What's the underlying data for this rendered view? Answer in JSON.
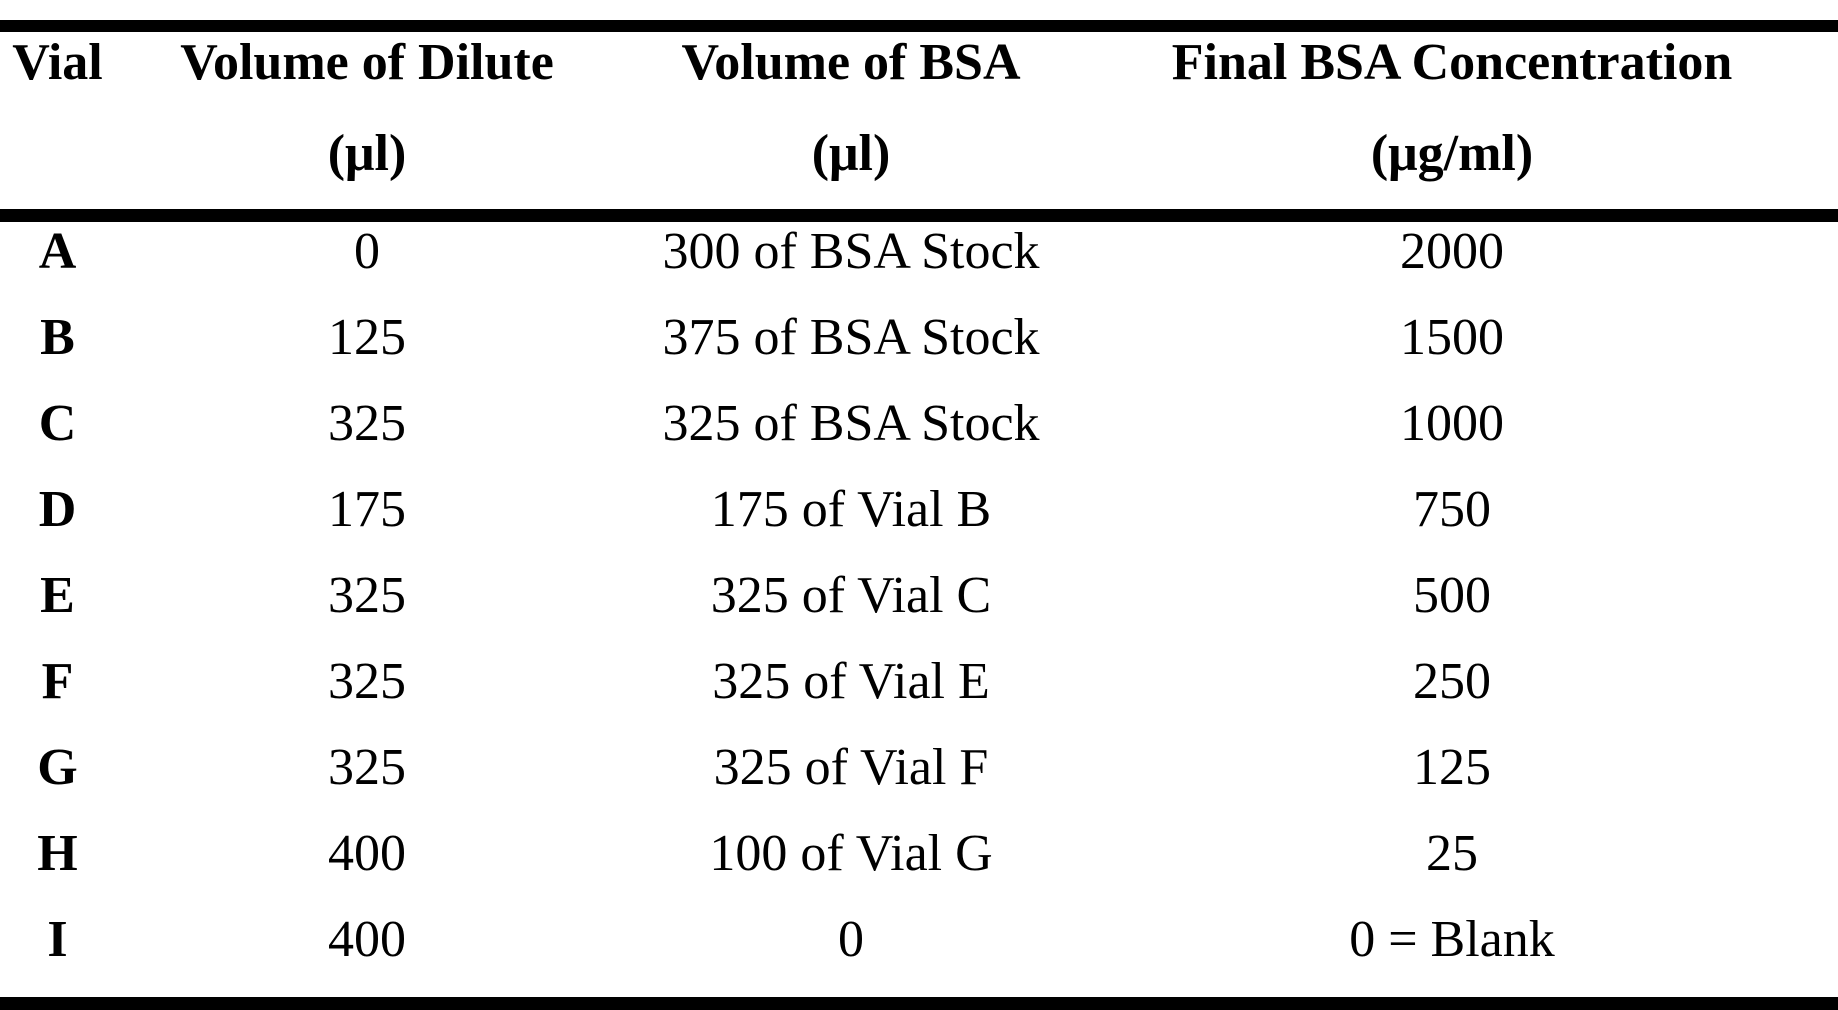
{
  "colors": {
    "text": "#000000",
    "background": "#ffffff",
    "rule": "#000000"
  },
  "table": {
    "headers": {
      "vial": {
        "title": "Vial",
        "unit": ""
      },
      "dilute": {
        "title": "Volume of Dilute",
        "unit": "(μl)"
      },
      "bsa": {
        "title": "Volume of BSA",
        "unit": "(μl)"
      },
      "final": {
        "title": "Final BSA Concentration",
        "unit": "(μg/ml)"
      }
    },
    "rows": [
      {
        "vial": "A",
        "dilute": "0",
        "bsa": "300 of BSA Stock",
        "final": "2000"
      },
      {
        "vial": "B",
        "dilute": "125",
        "bsa": "375 of BSA Stock",
        "final": "1500"
      },
      {
        "vial": "C",
        "dilute": "325",
        "bsa": "325 of BSA Stock",
        "final": "1000"
      },
      {
        "vial": "D",
        "dilute": "175",
        "bsa": "175 of Vial B",
        "final": "750"
      },
      {
        "vial": "E",
        "dilute": "325",
        "bsa": "325 of Vial C",
        "final": "500"
      },
      {
        "vial": "F",
        "dilute": "325",
        "bsa": "325 of Vial E",
        "final": "250"
      },
      {
        "vial": "G",
        "dilute": "325",
        "bsa": "325 of Vial F",
        "final": "125"
      },
      {
        "vial": "H",
        "dilute": "400",
        "bsa": "100 of Vial G",
        "final": "25"
      },
      {
        "vial": "I",
        "dilute": "400",
        "bsa": "0",
        "final": "0 = Blank"
      }
    ]
  },
  "chart_data": {
    "type": "table",
    "columns": [
      "Vial",
      "Volume of Dilute (μl)",
      "Volume of BSA (μl)",
      "Final BSA Concentration (μg/ml)"
    ],
    "rows": [
      [
        "A",
        "0",
        "300 of BSA Stock",
        "2000"
      ],
      [
        "B",
        "125",
        "375 of BSA Stock",
        "1500"
      ],
      [
        "C",
        "325",
        "325 of BSA Stock",
        "1000"
      ],
      [
        "D",
        "175",
        "175 of Vial B",
        "750"
      ],
      [
        "E",
        "325",
        "325 of Vial C",
        "500"
      ],
      [
        "F",
        "325",
        "325 of Vial E",
        "250"
      ],
      [
        "G",
        "325",
        "325 of Vial F",
        "125"
      ],
      [
        "H",
        "400",
        "100 of Vial G",
        "25"
      ],
      [
        "I",
        "400",
        "0",
        "0 = Blank"
      ]
    ]
  }
}
